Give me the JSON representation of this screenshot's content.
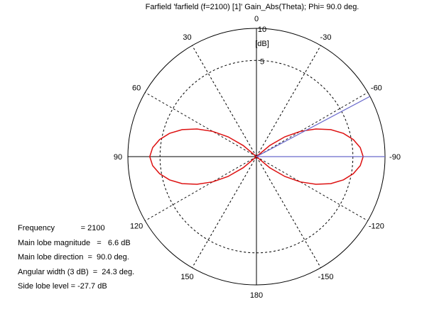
{
  "chart_data": {
    "type": "polar-line",
    "title": "Farfield 'farfield (f=2100) [1]' Gain_Abs(Theta); Phi=  90.0 deg.",
    "unit_label": "[dB]",
    "radial_range": [
      -10,
      10
    ],
    "radial_ticks": [
      {
        "value": 10,
        "label": "10"
      },
      {
        "value": 5,
        "label": "5"
      }
    ],
    "angle_ticks": [
      {
        "angle": 0,
        "label": "0"
      },
      {
        "angle": 30,
        "label": "30"
      },
      {
        "angle": -30,
        "label": "-30"
      },
      {
        "angle": 60,
        "label": "60"
      },
      {
        "angle": -60,
        "label": "-60"
      },
      {
        "angle": 90,
        "label": "90"
      },
      {
        "angle": -90,
        "label": "-90"
      },
      {
        "angle": 120,
        "label": "120"
      },
      {
        "angle": -120,
        "label": "-120"
      },
      {
        "angle": 150,
        "label": "150"
      },
      {
        "angle": -150,
        "label": "-150"
      },
      {
        "angle": 180,
        "label": "180"
      }
    ],
    "grid_dashed_angles": [
      30,
      60,
      120,
      150,
      -30,
      -60,
      -120,
      -150
    ],
    "series": [
      {
        "color": "#dd1111",
        "points": [
          [
            -90,
            6.6
          ],
          [
            -85,
            6.2
          ],
          [
            -80,
            5.3
          ],
          [
            -75,
            4.0
          ],
          [
            -70,
            2.3
          ],
          [
            -65,
            0.2
          ],
          [
            -60,
            -2.1
          ],
          [
            -55,
            -4.6
          ],
          [
            -50,
            -7.3
          ],
          [
            -45,
            -10.0
          ],
          [
            -40,
            -10.0
          ],
          [
            0,
            -10.0
          ],
          [
            40,
            -10.0
          ],
          [
            45,
            -10.0
          ],
          [
            50,
            -7.3
          ],
          [
            55,
            -4.6
          ],
          [
            60,
            -2.1
          ],
          [
            65,
            0.2
          ],
          [
            70,
            2.3
          ],
          [
            75,
            4.0
          ],
          [
            80,
            5.3
          ],
          [
            85,
            6.2
          ],
          [
            90,
            6.6
          ],
          [
            95,
            6.2
          ],
          [
            100,
            5.3
          ],
          [
            105,
            4.0
          ],
          [
            110,
            2.3
          ],
          [
            115,
            0.2
          ],
          [
            120,
            -2.1
          ],
          [
            125,
            -4.6
          ],
          [
            130,
            -7.3
          ],
          [
            135,
            -10.0
          ],
          [
            180,
            -10.0
          ],
          [
            -135,
            -10.0
          ],
          [
            -130,
            -7.3
          ],
          [
            -125,
            -4.6
          ],
          [
            -120,
            -2.1
          ],
          [
            -115,
            0.2
          ],
          [
            -110,
            2.3
          ],
          [
            -105,
            4.0
          ],
          [
            -100,
            5.3
          ],
          [
            -95,
            6.2
          ],
          [
            -90,
            6.6
          ]
        ]
      }
    ],
    "markers": [
      {
        "kind": "main-lobe-direction",
        "angle": -90,
        "color": "#6a6acc"
      },
      {
        "kind": "3dB-beamwidth-edge",
        "angle": -62,
        "color": "#6a6acc"
      }
    ]
  },
  "info": {
    "rows": [
      "Frequency            = 2100",
      "Main lobe magnitude   =   6.6 dB",
      "Main lobe direction  =  90.0 deg.",
      "Angular width (3 dB)  =  24.3 deg.",
      "Side lobe level = -27.7 dB"
    ]
  }
}
